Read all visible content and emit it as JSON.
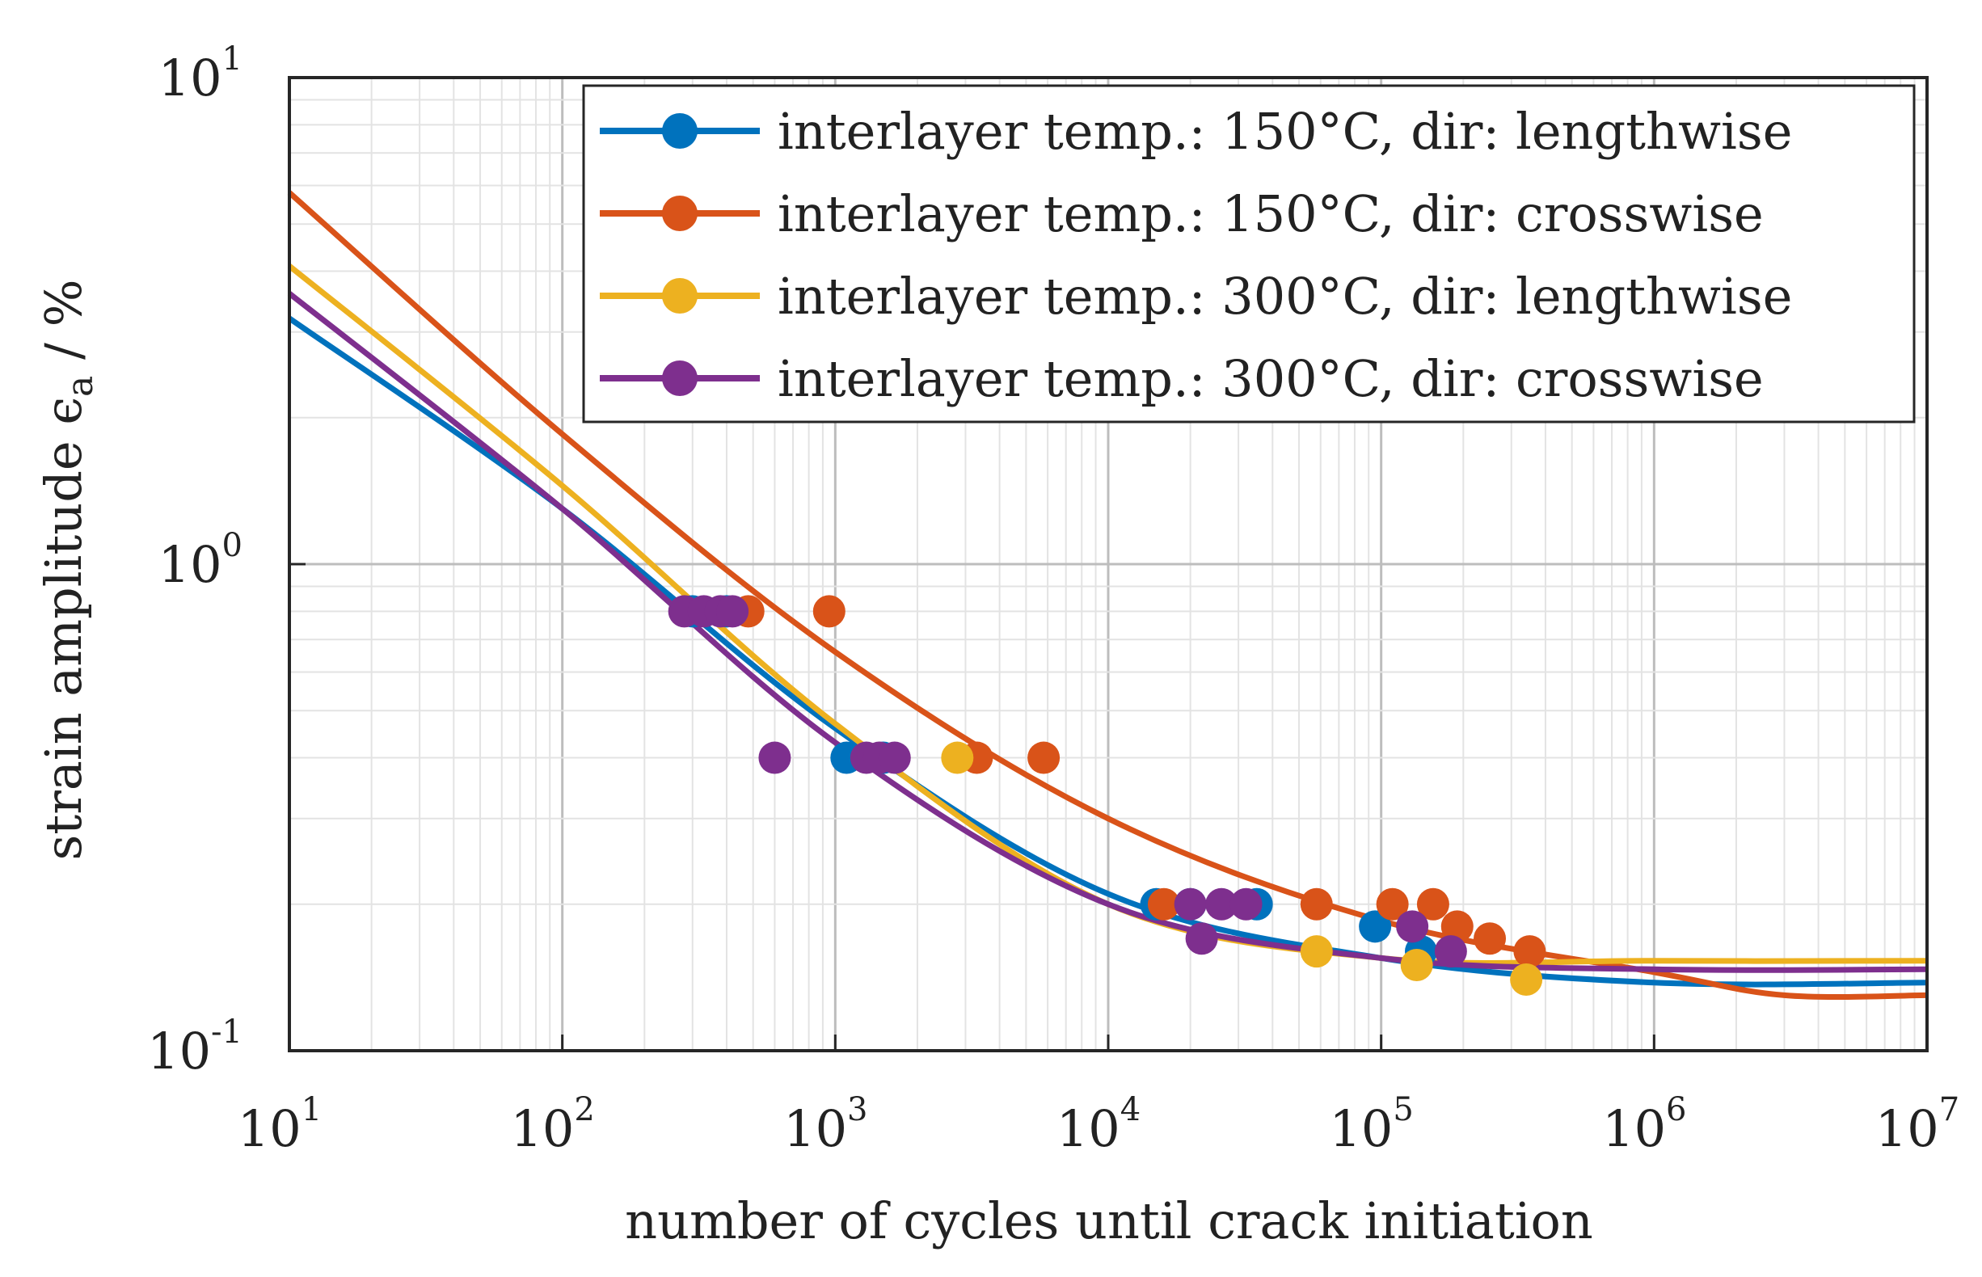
{
  "chart_data": {
    "type": "line",
    "title": "",
    "xlabel": "number of cycles until crack initiation",
    "ylabel": {
      "main": "strain amplitude ",
      "symbol": "ϵ",
      "subscript": "a",
      "unit": " / %"
    },
    "xscale": "log",
    "yscale": "log",
    "xlim": [
      10,
      10000000
    ],
    "ylim": [
      0.1,
      10
    ],
    "grid": true,
    "legend_position": "top-right",
    "x_ticks": [
      {
        "value": 10,
        "base": "10",
        "exp": "1"
      },
      {
        "value": 100,
        "base": "10",
        "exp": "2"
      },
      {
        "value": 1000,
        "base": "10",
        "exp": "3"
      },
      {
        "value": 10000,
        "base": "10",
        "exp": "4"
      },
      {
        "value": 100000,
        "base": "10",
        "exp": "5"
      },
      {
        "value": 1000000,
        "base": "10",
        "exp": "6"
      },
      {
        "value": 10000000,
        "base": "10",
        "exp": "7"
      }
    ],
    "y_ticks": [
      {
        "value": 0.1,
        "base": "10",
        "exp": "-1"
      },
      {
        "value": 1,
        "base": "10",
        "exp": "0"
      },
      {
        "value": 10,
        "base": "10",
        "exp": "1"
      }
    ],
    "series": [
      {
        "name": "interlayer temp.: 150°C, dir: lengthwise",
        "color": "#0072BD",
        "fit": {
          "x": [
            10,
            100,
            1000,
            10000,
            100000,
            1000000,
            10000000
          ],
          "y": [
            3.2,
            1.3,
            0.46,
            0.21,
            0.155,
            0.138,
            0.138
          ]
        },
        "points": [
          {
            "x": 300,
            "y": 0.8
          },
          {
            "x": 400,
            "y": 0.8
          },
          {
            "x": 1100,
            "y": 0.4
          },
          {
            "x": 1500,
            "y": 0.4
          },
          {
            "x": 15000,
            "y": 0.2
          },
          {
            "x": 20000,
            "y": 0.2
          },
          {
            "x": 35000,
            "y": 0.2
          },
          {
            "x": 95000,
            "y": 0.18
          },
          {
            "x": 140000,
            "y": 0.16
          }
        ]
      },
      {
        "name": "interlayer temp.: 150°C, dir: crosswise",
        "color": "#D95319",
        "fit": {
          "x": [
            10,
            100,
            1000,
            10000,
            100000,
            1000000,
            3000000,
            10000000
          ],
          "y": [
            5.8,
            1.85,
            0.66,
            0.3,
            0.185,
            0.145,
            0.13,
            0.13
          ]
        },
        "points": [
          {
            "x": 480,
            "y": 0.8
          },
          {
            "x": 950,
            "y": 0.8
          },
          {
            "x": 3300,
            "y": 0.4
          },
          {
            "x": 5800,
            "y": 0.4
          },
          {
            "x": 16000,
            "y": 0.2
          },
          {
            "x": 58000,
            "y": 0.2
          },
          {
            "x": 110000,
            "y": 0.2
          },
          {
            "x": 155000,
            "y": 0.2
          },
          {
            "x": 190000,
            "y": 0.18
          },
          {
            "x": 250000,
            "y": 0.17
          },
          {
            "x": 350000,
            "y": 0.16
          }
        ]
      },
      {
        "name": "interlayer temp.: 300°C, dir: lengthwise",
        "color": "#EDB120",
        "fit": {
          "x": [
            10,
            100,
            1000,
            10000,
            100000,
            1000000,
            10000000
          ],
          "y": [
            4.1,
            1.45,
            0.47,
            0.2,
            0.155,
            0.153,
            0.153
          ]
        },
        "points": [
          {
            "x": 2800,
            "y": 0.4
          },
          {
            "x": 58000,
            "y": 0.16
          },
          {
            "x": 135000,
            "y": 0.15
          },
          {
            "x": 340000,
            "y": 0.14
          }
        ]
      },
      {
        "name": "interlayer temp.: 300°C, dir: crosswise",
        "color": "#7E2F8E",
        "fit": {
          "x": [
            10,
            100,
            1000,
            10000,
            100000,
            1000000,
            10000000
          ],
          "y": [
            3.6,
            1.3,
            0.43,
            0.2,
            0.155,
            0.147,
            0.147
          ]
        },
        "points": [
          {
            "x": 280,
            "y": 0.8
          },
          {
            "x": 330,
            "y": 0.8
          },
          {
            "x": 380,
            "y": 0.8
          },
          {
            "x": 420,
            "y": 0.8
          },
          {
            "x": 600,
            "y": 0.4
          },
          {
            "x": 1300,
            "y": 0.4
          },
          {
            "x": 1450,
            "y": 0.4
          },
          {
            "x": 1650,
            "y": 0.4
          },
          {
            "x": 20000,
            "y": 0.2
          },
          {
            "x": 22000,
            "y": 0.17
          },
          {
            "x": 26000,
            "y": 0.2
          },
          {
            "x": 32000,
            "y": 0.2
          },
          {
            "x": 130000,
            "y": 0.18
          },
          {
            "x": 180000,
            "y": 0.16
          }
        ]
      }
    ]
  }
}
